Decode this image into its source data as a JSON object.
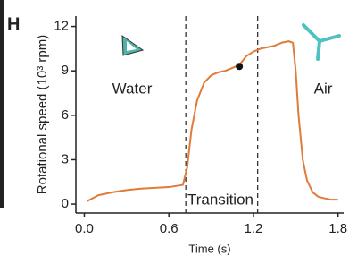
{
  "chart_data": {
    "type": "line",
    "panel_label": "H",
    "xlabel": "Time (s)",
    "ylabel": "Rotational speed (10³ rpm)",
    "x": [
      0.02,
      0.1,
      0.2,
      0.3,
      0.4,
      0.5,
      0.6,
      0.7,
      0.73,
      0.76,
      0.8,
      0.85,
      0.9,
      0.95,
      1.0,
      1.05,
      1.1,
      1.15,
      1.2,
      1.25,
      1.3,
      1.35,
      1.4,
      1.45,
      1.48,
      1.5,
      1.52,
      1.55,
      1.58,
      1.62,
      1.66,
      1.7,
      1.75,
      1.8
    ],
    "series": [
      {
        "color": "#e07b39",
        "values": [
          0.2,
          0.6,
          0.8,
          0.95,
          1.05,
          1.1,
          1.15,
          1.3,
          2.5,
          5.0,
          7.0,
          8.2,
          8.7,
          8.9,
          9.0,
          9.2,
          9.4,
          10.0,
          10.3,
          10.5,
          10.6,
          10.7,
          10.9,
          11.0,
          10.9,
          9.0,
          6.0,
          3.0,
          1.6,
          0.8,
          0.5,
          0.4,
          0.3,
          0.3
        ]
      }
    ],
    "vlines": [
      0.72,
      1.23
    ],
    "marker": {
      "x": 1.1,
      "y": 9.3
    },
    "annotations": [
      "Water",
      "Air",
      "Transition"
    ],
    "xlim": [
      -0.06,
      1.84
    ],
    "ylim": [
      -0.6,
      12.7
    ],
    "xticks": [
      {
        "value": 0,
        "label": "0.0"
      },
      0.6,
      1.2,
      1.8
    ],
    "yticks": [
      0,
      3,
      6,
      9,
      12
    ]
  }
}
